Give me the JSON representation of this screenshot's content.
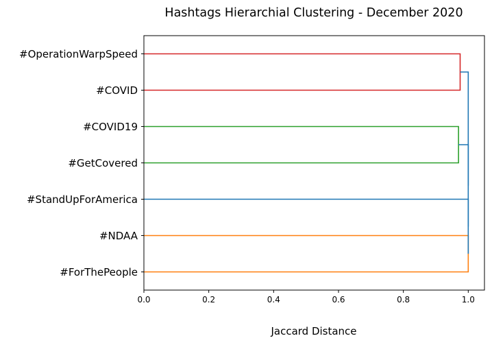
{
  "chart_data": {
    "type": "dendrogram",
    "title": "Hashtags Hierarchial Clustering - December 2020",
    "xlabel": "Jaccard Distance",
    "ylabel": "",
    "xlim": [
      0.0,
      1.05
    ],
    "x_ticks": [
      0.0,
      0.2,
      0.4,
      0.6,
      0.8,
      1.0
    ],
    "x_tick_labels": [
      "0.0",
      "0.2",
      "0.4",
      "0.6",
      "0.8",
      "1.0"
    ],
    "grid": false,
    "orientation": "left",
    "leaves": [
      "#OperationWarpSpeed",
      "#COVID",
      "#COVID19",
      "#GetCovered",
      "#StandUpForAmerica",
      "#NDAA",
      "#ForThePeople"
    ],
    "merges": [
      {
        "left": "#OperationWarpSpeed",
        "right": "#COVID",
        "distance": 0.975,
        "color": "#d62728"
      },
      {
        "left": "#COVID19",
        "right": "#GetCovered",
        "distance": 0.97,
        "color": "#2ca02c"
      },
      {
        "left": "#NDAA",
        "right": "#ForThePeople",
        "distance": 1.0,
        "color": "#ff7f0e"
      },
      {
        "left": "#StandUpForAmerica",
        "right": "#NDAA + #ForThePeople",
        "distance": 1.0,
        "color": "#1f77b4"
      },
      {
        "left": "#COVID19 + #GetCovered",
        "right": "#StandUpForAmerica + #NDAA + #ForThePeople",
        "distance": 1.0,
        "color": "#1f77b4"
      },
      {
        "left": "#OperationWarpSpeed + #COVID",
        "right": "#COVID19 + #GetCovered + #StandUpForAmerica + #NDAA + #ForThePeople",
        "distance": 1.0,
        "color": "#1f77b4"
      }
    ]
  }
}
